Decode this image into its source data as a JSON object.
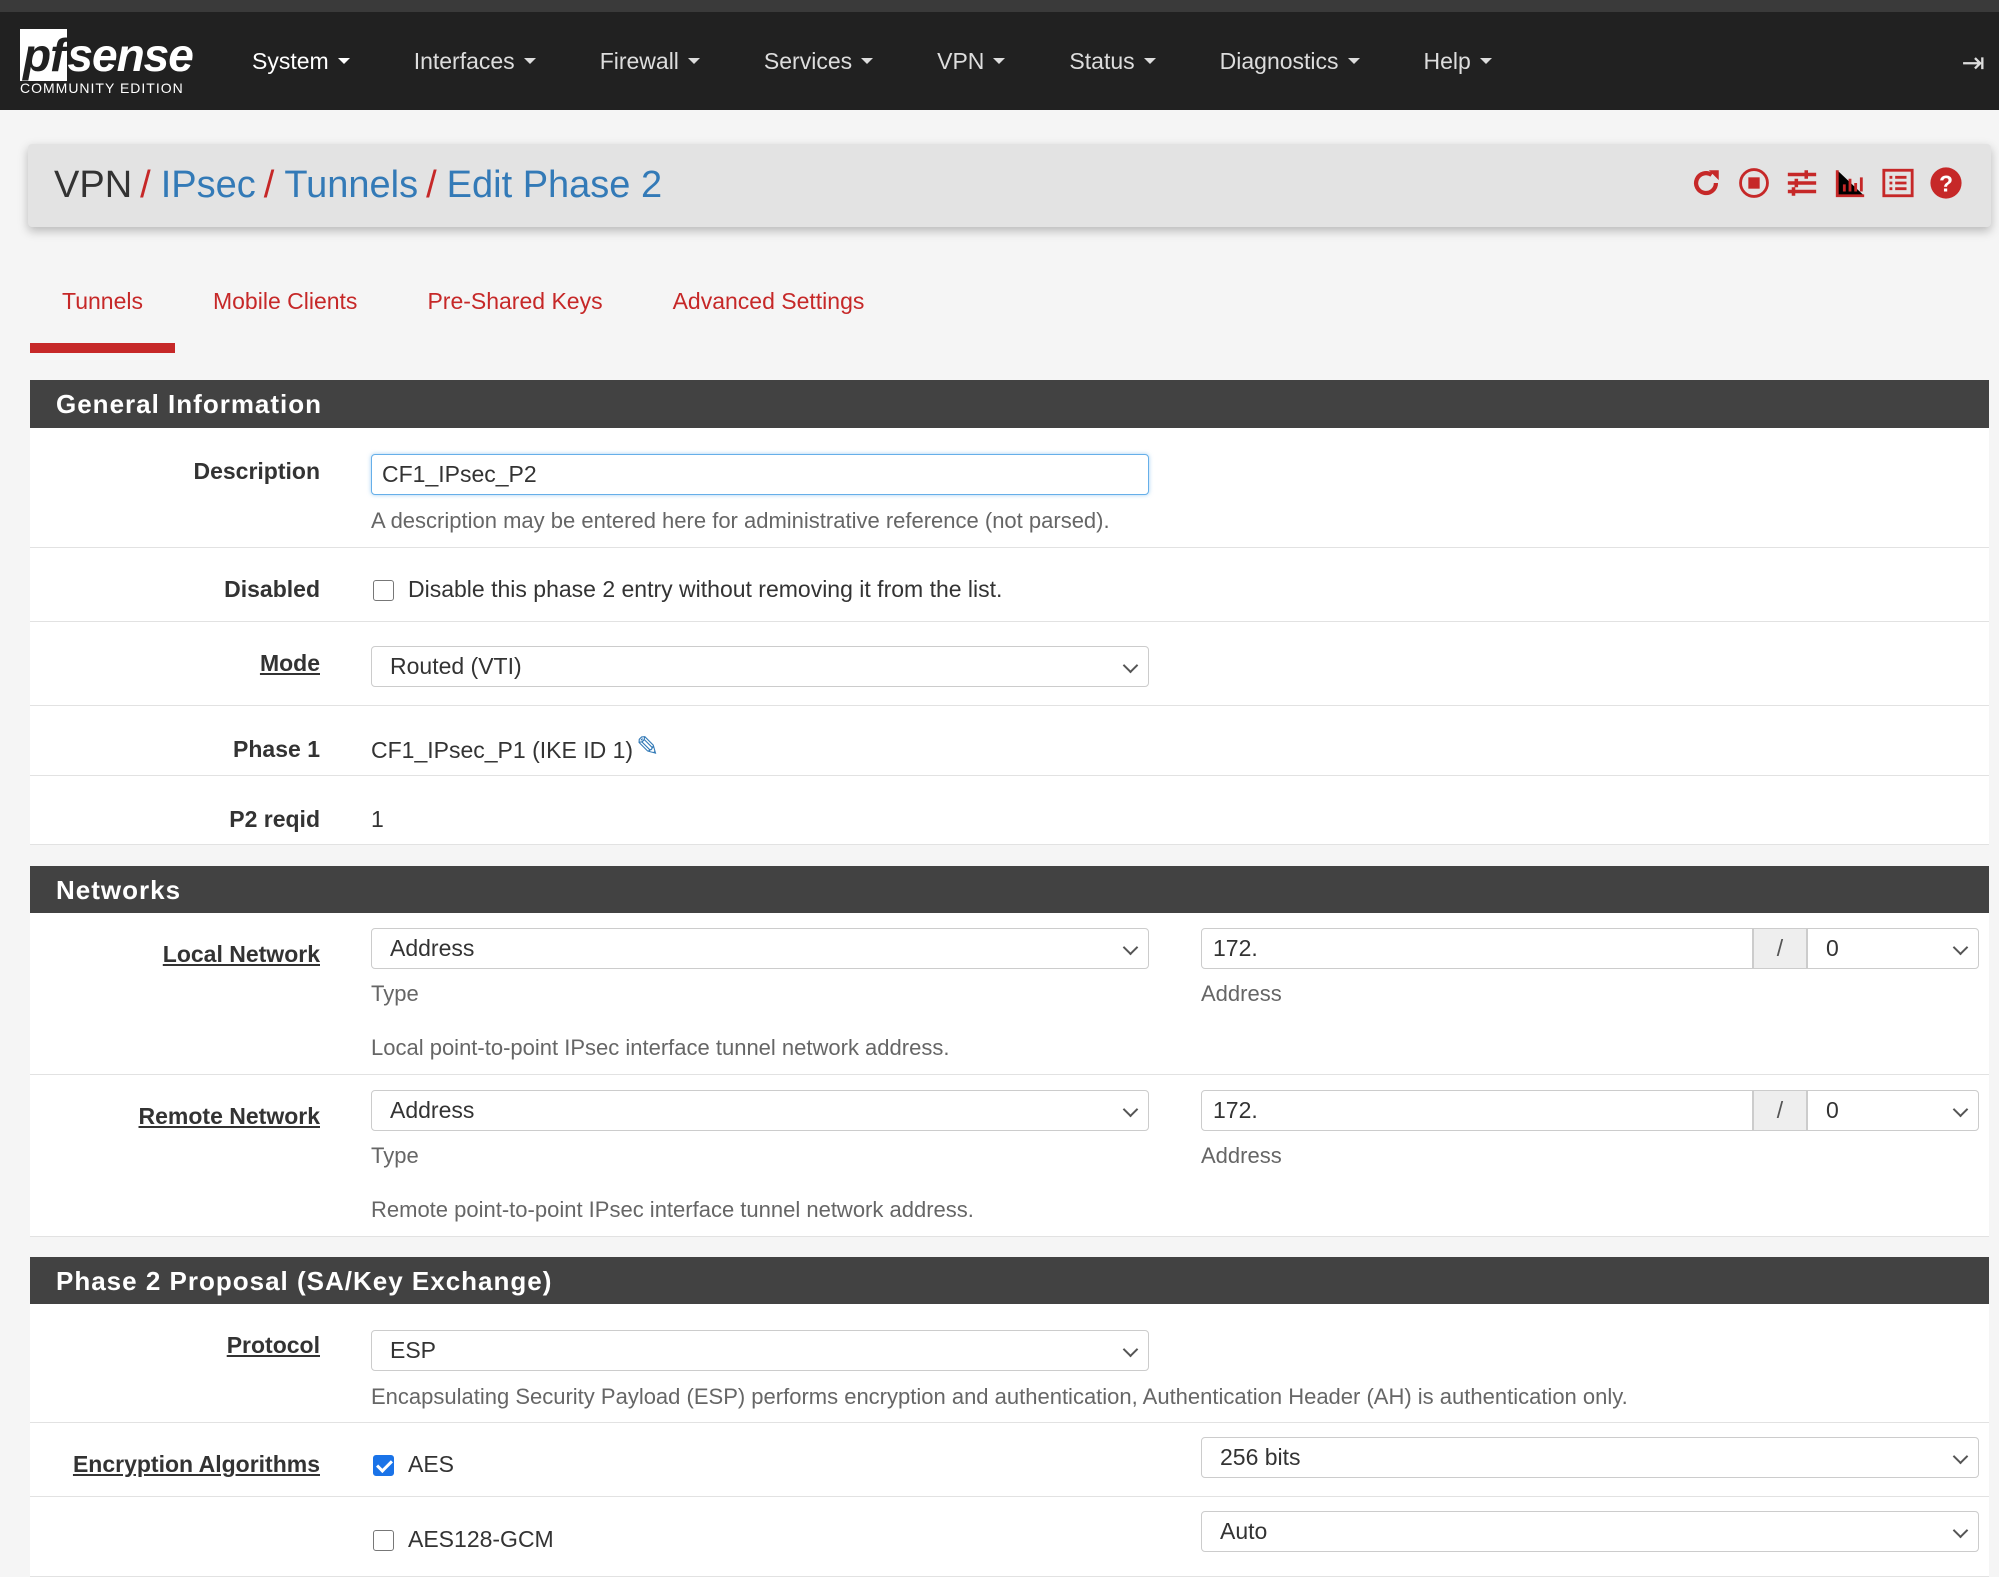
{
  "navbar": {
    "logo": "pfsense",
    "edition": "COMMUNITY EDITION",
    "menu": [
      "System",
      "Interfaces",
      "Firewall",
      "Services",
      "VPN",
      "Status",
      "Diagnostics",
      "Help"
    ]
  },
  "breadcrumb": {
    "items": [
      "VPN",
      "IPsec",
      "Tunnels",
      "Edit Phase 2"
    ],
    "sep": "/"
  },
  "tabs": [
    "Tunnels",
    "Mobile Clients",
    "Pre-Shared Keys",
    "Advanced Settings"
  ],
  "general": {
    "title": "General Information",
    "description": {
      "label": "Description",
      "value": "CF1_IPsec_P2",
      "help": "A description may be entered here for administrative reference (not parsed)."
    },
    "disabled": {
      "label": "Disabled",
      "text": "Disable this phase 2 entry without removing it from the list.",
      "checked": false
    },
    "mode": {
      "label": "Mode",
      "value": "Routed (VTI)"
    },
    "phase1": {
      "label": "Phase 1",
      "value": "CF1_IPsec_P1 (IKE ID 1)"
    },
    "reqid": {
      "label": "P2 reqid",
      "value": "1"
    }
  },
  "networks": {
    "title": "Networks",
    "local": {
      "label": "Local Network",
      "type": "Address",
      "type_label": "Type",
      "address": "172.",
      "address_label": "Address",
      "slash": "/",
      "mask": "0",
      "help": "Local point-to-point IPsec interface tunnel network address."
    },
    "remote": {
      "label": "Remote Network",
      "type": "Address",
      "type_label": "Type",
      "address": "172.",
      "address_label": "Address",
      "slash": "/",
      "mask": "0",
      "help": "Remote point-to-point IPsec interface tunnel network address."
    }
  },
  "proposal": {
    "title": "Phase 2 Proposal (SA/Key Exchange)",
    "protocol": {
      "label": "Protocol",
      "value": "ESP",
      "help": "Encapsulating Security Payload (ESP) performs encryption and authentication, Authentication Header (AH) is authentication only."
    },
    "enc_label": "Encryption Algorithms",
    "algorithms": [
      {
        "name": "AES",
        "checked": true,
        "keylen": "256 bits"
      },
      {
        "name": "AES128-GCM",
        "checked": false,
        "keylen": "Auto"
      }
    ]
  },
  "colors": {
    "accent": "#c62828",
    "link": "#337ab7",
    "navbar": "#212121",
    "panel_header": "#424242"
  }
}
